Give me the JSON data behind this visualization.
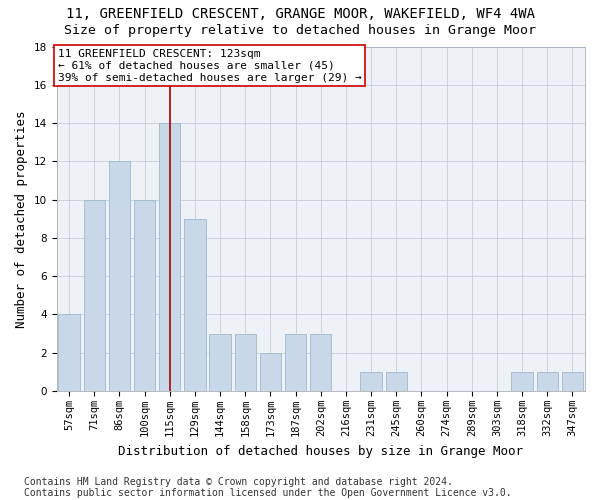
{
  "title": "11, GREENFIELD CRESCENT, GRANGE MOOR, WAKEFIELD, WF4 4WA",
  "subtitle": "Size of property relative to detached houses in Grange Moor",
  "xlabel": "Distribution of detached houses by size in Grange Moor",
  "ylabel": "Number of detached properties",
  "categories": [
    "57sqm",
    "71sqm",
    "86sqm",
    "100sqm",
    "115sqm",
    "129sqm",
    "144sqm",
    "158sqm",
    "173sqm",
    "187sqm",
    "202sqm",
    "216sqm",
    "231sqm",
    "245sqm",
    "260sqm",
    "274sqm",
    "289sqm",
    "303sqm",
    "318sqm",
    "332sqm",
    "347sqm"
  ],
  "values": [
    4,
    10,
    12,
    10,
    14,
    9,
    3,
    3,
    2,
    3,
    3,
    0,
    1,
    1,
    0,
    0,
    0,
    0,
    1,
    1,
    1
  ],
  "bar_color": "#c8d8e8",
  "bar_edge_color": "#a0b8cc",
  "vline_x_index": 4,
  "vline_color": "#aa0000",
  "annotation_line1": "11 GREENFIELD CRESCENT: 123sqm",
  "annotation_line2": "← 61% of detached houses are smaller (45)",
  "annotation_line3": "39% of semi-detached houses are larger (29) →",
  "annotation_box_color": "#ffffff",
  "annotation_box_edge": "#cc0000",
  "ylim": [
    0,
    18
  ],
  "yticks": [
    0,
    2,
    4,
    6,
    8,
    10,
    12,
    14,
    16,
    18
  ],
  "bg_color": "#eef2f7",
  "grid_color": "#c5cdd8",
  "footer_text": "Contains HM Land Registry data © Crown copyright and database right 2024.\nContains public sector information licensed under the Open Government Licence v3.0.",
  "title_fontsize": 10,
  "subtitle_fontsize": 9.5,
  "axis_label_fontsize": 9,
  "tick_fontsize": 7.5,
  "annotation_fontsize": 8,
  "footer_fontsize": 7
}
